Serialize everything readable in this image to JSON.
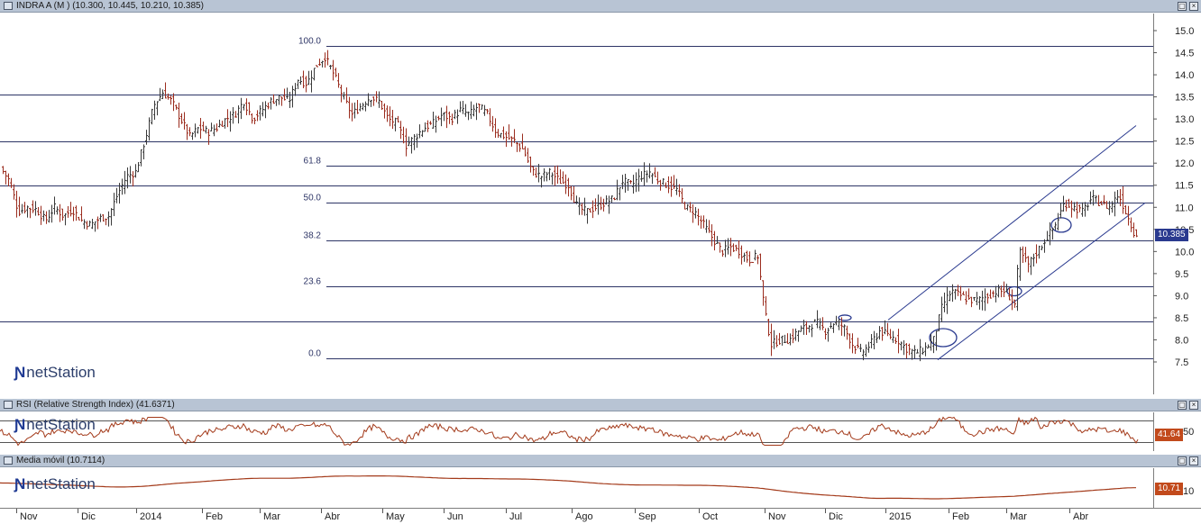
{
  "window": {
    "main_title": "INDRA A (M ) (10.300, 10.445, 10.210, 10.385)",
    "rsi_title": "RSI (Relative Strength Index) (41.6371)",
    "ma_title": "Media móvil (10.7114)",
    "logo_text": "netStation",
    "restore_glyph": "▢",
    "close_glyph": "×"
  },
  "badges": {
    "price": "10.385",
    "rsi": "41.64",
    "ma": "10.71"
  },
  "colors": {
    "candle": "#9b2d1f",
    "fib_line": "#2d3566",
    "channel": "#2a3a8f",
    "badge_price_bg": "#2a3a8f",
    "badge_ind_bg": "#c24a1c",
    "indicator_line": "#a33a1a"
  },
  "chart_data": [
    {
      "type": "line",
      "subtype": "ohlc",
      "title": "INDRA A (M ) (10.300, 10.445, 10.210, 10.385)",
      "last": {
        "open": 10.3,
        "high": 10.445,
        "low": 10.21,
        "close": 10.385
      },
      "ylim": [
        7.0,
        15.25
      ],
      "y_ticks": [
        7.5,
        8.0,
        8.5,
        9.0,
        9.5,
        10.0,
        10.5,
        11.0,
        11.5,
        12.0,
        12.5,
        13.0,
        13.5,
        14.0,
        14.5,
        15.0
      ],
      "x_labels": [
        "Nov",
        "Dic",
        "2014",
        "Feb",
        "Mar",
        "Abr",
        "May",
        "Jun",
        "Jul",
        "Ago",
        "Sep",
        "Oct",
        "Nov",
        "Dic",
        "2015",
        "Feb",
        "Mar",
        "Abr"
      ],
      "price_path": [
        [
          0,
          11.9
        ],
        [
          10,
          11.6
        ],
        [
          20,
          10.9
        ],
        [
          30,
          11.0
        ],
        [
          40,
          10.95
        ],
        [
          50,
          10.7
        ],
        [
          60,
          11.0
        ],
        [
          70,
          10.8
        ],
        [
          80,
          10.95
        ],
        [
          90,
          10.7
        ],
        [
          100,
          10.6
        ],
        [
          110,
          10.75
        ],
        [
          120,
          10.8
        ],
        [
          130,
          11.3
        ],
        [
          140,
          11.7
        ],
        [
          150,
          11.8
        ],
        [
          160,
          12.5
        ],
        [
          170,
          13.3
        ],
        [
          180,
          13.6
        ],
        [
          190,
          13.4
        ],
        [
          200,
          13.0
        ],
        [
          210,
          12.6
        ],
        [
          220,
          12.8
        ],
        [
          230,
          12.7
        ],
        [
          240,
          12.8
        ],
        [
          250,
          13.0
        ],
        [
          260,
          13.1
        ],
        [
          270,
          13.4
        ],
        [
          280,
          13.0
        ],
        [
          290,
          13.2
        ],
        [
          300,
          13.4
        ],
        [
          310,
          13.5
        ],
        [
          320,
          13.4
        ],
        [
          330,
          13.9
        ],
        [
          340,
          13.8
        ],
        [
          350,
          14.2
        ],
        [
          360,
          14.4
        ],
        [
          370,
          14.0
        ],
        [
          380,
          13.5
        ],
        [
          390,
          13.1
        ],
        [
          400,
          13.3
        ],
        [
          410,
          13.5
        ],
        [
          420,
          13.4
        ],
        [
          430,
          13.0
        ],
        [
          440,
          12.9
        ],
        [
          450,
          12.4
        ],
        [
          460,
          12.6
        ],
        [
          470,
          12.8
        ],
        [
          480,
          12.9
        ],
        [
          490,
          13.1
        ],
        [
          500,
          13.0
        ],
        [
          510,
          13.2
        ],
        [
          520,
          13.1
        ],
        [
          530,
          13.3
        ],
        [
          540,
          13.1
        ],
        [
          550,
          12.7
        ],
        [
          560,
          12.6
        ],
        [
          570,
          12.5
        ],
        [
          580,
          12.3
        ],
        [
          590,
          11.8
        ],
        [
          600,
          11.7
        ],
        [
          610,
          11.8
        ],
        [
          620,
          11.6
        ],
        [
          630,
          11.5
        ],
        [
          640,
          11.0
        ],
        [
          650,
          10.9
        ],
        [
          660,
          11.0
        ],
        [
          670,
          11.1
        ],
        [
          680,
          11.2
        ],
        [
          690,
          11.6
        ],
        [
          700,
          11.5
        ],
        [
          710,
          11.7
        ],
        [
          720,
          11.8
        ],
        [
          730,
          11.6
        ],
        [
          740,
          11.5
        ],
        [
          750,
          11.4
        ],
        [
          760,
          11.0
        ],
        [
          770,
          10.9
        ],
        [
          780,
          10.6
        ],
        [
          790,
          10.3
        ],
        [
          800,
          10.0
        ],
        [
          810,
          10.1
        ],
        [
          820,
          10.0
        ],
        [
          830,
          9.8
        ],
        [
          840,
          9.9
        ],
        [
          848,
          8.6
        ],
        [
          855,
          7.9
        ],
        [
          865,
          8.0
        ],
        [
          875,
          8.0
        ],
        [
          885,
          8.2
        ],
        [
          895,
          8.3
        ],
        [
          905,
          8.4
        ],
        [
          915,
          8.2
        ],
        [
          925,
          8.4
        ],
        [
          935,
          8.3
        ],
        [
          945,
          7.9
        ],
        [
          955,
          7.7
        ],
        [
          965,
          7.9
        ],
        [
          975,
          8.2
        ],
        [
          985,
          8.1
        ],
        [
          995,
          8.0
        ],
        [
          1005,
          7.8
        ],
        [
          1015,
          7.7
        ],
        [
          1025,
          7.8
        ],
        [
          1035,
          8.0
        ],
        [
          1045,
          8.8
        ],
        [
          1055,
          9.1
        ],
        [
          1065,
          9.0
        ],
        [
          1075,
          8.9
        ],
        [
          1085,
          8.9
        ],
        [
          1095,
          9.0
        ],
        [
          1105,
          9.1
        ],
        [
          1115,
          9.1
        ],
        [
          1125,
          8.8
        ],
        [
          1130,
          10.0
        ],
        [
          1140,
          9.7
        ],
        [
          1150,
          10.0
        ],
        [
          1160,
          10.3
        ],
        [
          1170,
          10.6
        ],
        [
          1180,
          11.1
        ],
        [
          1190,
          11.0
        ],
        [
          1200,
          10.9
        ],
        [
          1210,
          11.2
        ],
        [
          1220,
          11.1
        ],
        [
          1230,
          11.0
        ],
        [
          1240,
          11.3
        ],
        [
          1250,
          10.8
        ],
        [
          1258,
          10.4
        ],
        [
          1262,
          10.385
        ]
      ],
      "fibonacci": {
        "levels": [
          "100.0",
          "61.8",
          "50.0",
          "38.2",
          "23.6",
          "0.0"
        ],
        "values": [
          14.65,
          11.95,
          11.1,
          10.25,
          9.22,
          7.58
        ]
      },
      "horizontal_lines": [
        13.55,
        12.5,
        11.5,
        8.42
      ],
      "channel": {
        "upper": [
          [
            985,
            8.45
          ],
          [
            1260,
            12.85
          ]
        ],
        "lower": [
          [
            1040,
            7.55
          ],
          [
            1270,
            11.1
          ]
        ]
      }
    },
    {
      "type": "line",
      "title": "RSI (Relative Strength Index) (41.6371)",
      "last": 41.6371,
      "y_ticks": [
        50
      ],
      "ylim": [
        25,
        75
      ]
    },
    {
      "type": "line",
      "title": "Media móvil (10.7114)",
      "last": 10.7114,
      "y_ticks": [
        10
      ]
    }
  ]
}
